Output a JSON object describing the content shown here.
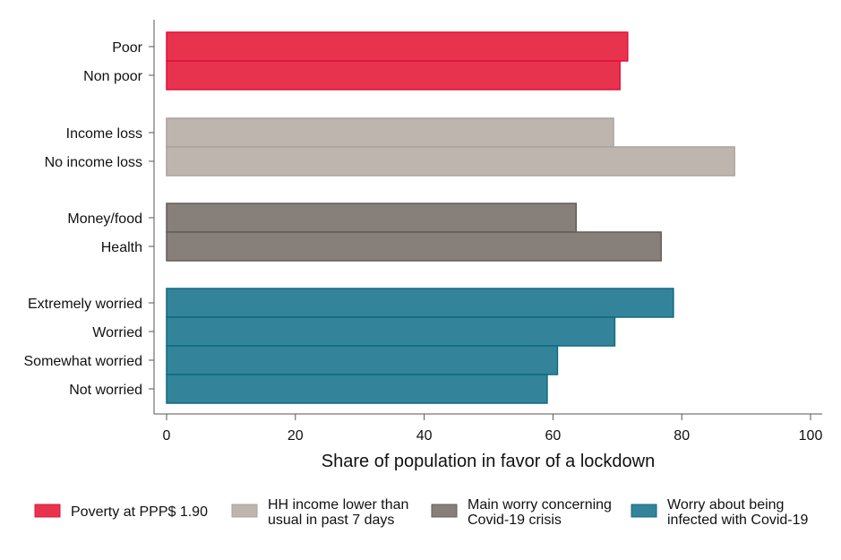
{
  "chart_data": {
    "type": "bar",
    "orientation": "horizontal",
    "xlabel": "Share of population in favor of a lockdown",
    "xlim": [
      0,
      100
    ],
    "xticks": [
      0,
      20,
      40,
      60,
      80,
      100
    ],
    "grid": false,
    "legend_placement": "bottom",
    "groups": [
      {
        "name": "Poverty at PPP$ 1.90",
        "color": "#e8334f",
        "edge": "#e0103a",
        "categories": [
          "Poor",
          "Non poor"
        ],
        "values": [
          71.6,
          70.4
        ]
      },
      {
        "name": "HH income lower than usual in past 7 days",
        "name_lines": [
          "HH income lower than",
          "usual in past 7 days"
        ],
        "color": "#bdb5ae",
        "edge": "#aaa29b",
        "categories": [
          "Income loss",
          "No income loss"
        ],
        "values": [
          69.4,
          88.2
        ]
      },
      {
        "name": "Main worry concerning Covid-19 crisis",
        "name_lines": [
          "Main worry concerning",
          "Covid-19 crisis"
        ],
        "color": "#877f79",
        "edge": "#655d58",
        "categories": [
          "Money/food",
          "Health"
        ],
        "values": [
          63.6,
          76.8
        ]
      },
      {
        "name": "Worry about being infected with Covid-19",
        "name_lines": [
          "Worry about being",
          "infected with Covid-19"
        ],
        "color": "#33849a",
        "edge": "#0f6a80",
        "categories": [
          "Extremely worried",
          "Worried",
          "Somewhat worried",
          "Not worried"
        ],
        "values": [
          78.7,
          69.6,
          60.7,
          59.1
        ]
      }
    ]
  }
}
